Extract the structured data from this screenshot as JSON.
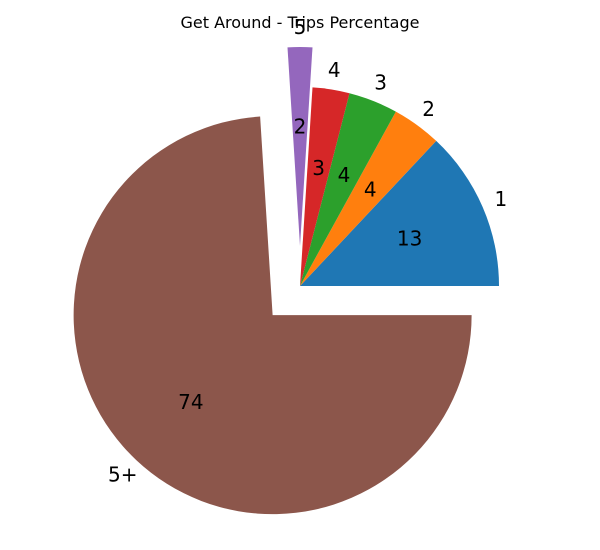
{
  "chart_data": {
    "type": "pie",
    "title": "Get Around - Trips Percentage",
    "slices": [
      {
        "label": "1",
        "value": 13,
        "display": "13",
        "color": "#1f77b4",
        "exploded": false
      },
      {
        "label": "2",
        "value": 4,
        "display": "4",
        "color": "#ff7f0e",
        "exploded": false
      },
      {
        "label": "3",
        "value": 4,
        "display": "4",
        "color": "#2ca02c",
        "exploded": false
      },
      {
        "label": "4",
        "value": 3,
        "display": "3",
        "color": "#d62728",
        "exploded": false
      },
      {
        "label": "5",
        "value": 2,
        "display": "2",
        "color": "#9467bd",
        "exploded": true
      },
      {
        "label": "5+",
        "value": 74,
        "display": "74",
        "color": "#8c564b",
        "exploded": true
      }
    ],
    "start_angle_deg": 0,
    "direction": "counterclockwise",
    "legend": "none"
  }
}
